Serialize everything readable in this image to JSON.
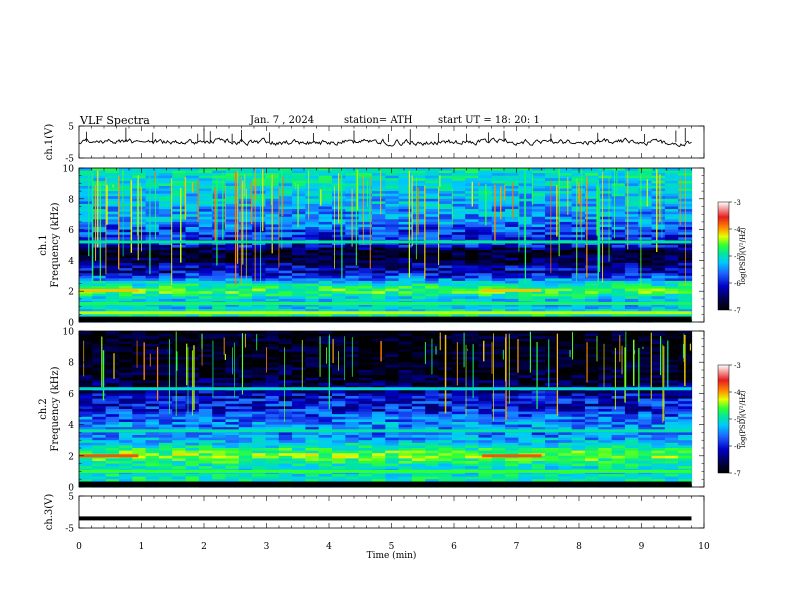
{
  "header": {
    "title": "VLF  Spectra",
    "date": "Jan.  7  , 2024",
    "station": "station= ATH",
    "start_ut": "start  UT  =   18: 20: 1"
  },
  "chart_data": [
    {
      "type": "line",
      "panel": "ch1-waveform",
      "ylabel": "ch.1(V)",
      "yticks": [
        "5",
        "-5"
      ],
      "ylim": [
        -5,
        5
      ],
      "xlim": [
        0,
        10
      ],
      "x_data_end_min": 9.8,
      "baseline_v": 0.0,
      "noise_v": 0.6,
      "spikes": [
        {
          "x": 0.12,
          "y": 3.2
        },
        {
          "x": 0.75,
          "y": 4.5
        },
        {
          "x": 1.18,
          "y": 3.0
        },
        {
          "x": 1.9,
          "y": 2.6
        },
        {
          "x": 2.0,
          "y": 4.2
        },
        {
          "x": 2.1,
          "y": 3.4
        },
        {
          "x": 2.45,
          "y": 2.6
        },
        {
          "x": 2.6,
          "y": 3.8
        },
        {
          "x": 3.05,
          "y": 3.0
        },
        {
          "x": 3.75,
          "y": 2.8
        },
        {
          "x": 4.4,
          "y": 3.6
        },
        {
          "x": 4.95,
          "y": 2.5
        },
        {
          "x": 5.3,
          "y": 4.0
        },
        {
          "x": 5.75,
          "y": 2.8
        },
        {
          "x": 6.2,
          "y": 2.6
        },
        {
          "x": 6.55,
          "y": 3.0
        },
        {
          "x": 6.8,
          "y": 3.5
        },
        {
          "x": 7.55,
          "y": 2.6
        },
        {
          "x": 8.3,
          "y": 2.9
        },
        {
          "x": 9.05,
          "y": 2.5
        },
        {
          "x": 9.55,
          "y": 3.6
        },
        {
          "x": 9.7,
          "y": 4.4
        }
      ]
    },
    {
      "type": "heatmap",
      "panel": "ch1-spectrogram",
      "ylabel": "ch.1\nFrequency  (kHz)",
      "yticks": [
        "0",
        "2",
        "4",
        "6",
        "8",
        "10"
      ],
      "ylim": [
        0,
        10
      ],
      "xlim": [
        0,
        10
      ],
      "x_data_end_min": 9.8,
      "colorbar": {
        "label": "log(PSD)(V²/Hz)",
        "ticks": [
          "-3",
          "-4",
          "-5",
          "-6",
          "-7"
        ],
        "range": [
          -7,
          -3
        ]
      },
      "background_logpsd": [
        {
          "f": 0.0,
          "v": -5.5
        },
        {
          "f": 0.5,
          "v": -4.9
        },
        {
          "f": 1.0,
          "v": -5.4
        },
        {
          "f": 1.5,
          "v": -5.3
        },
        {
          "f": 2.0,
          "v": -4.6
        },
        {
          "f": 2.4,
          "v": -5.0
        },
        {
          "f": 2.8,
          "v": -5.7
        },
        {
          "f": 3.2,
          "v": -6.2
        },
        {
          "f": 3.6,
          "v": -6.3
        },
        {
          "f": 4.0,
          "v": -6.7
        },
        {
          "f": 4.6,
          "v": -6.8
        },
        {
          "f": 5.0,
          "v": -6.1
        },
        {
          "f": 6.0,
          "v": -5.9
        },
        {
          "f": 6.5,
          "v": -5.6
        },
        {
          "f": 7.0,
          "v": -5.6
        },
        {
          "f": 8.0,
          "v": -5.4
        },
        {
          "f": 9.0,
          "v": -5.2
        },
        {
          "f": 10.0,
          "v": -5.1
        }
      ],
      "tones": [
        {
          "f": 2.05,
          "v": -4.0,
          "x0": 0.0,
          "x1": 0.95
        },
        {
          "f": 2.05,
          "v": -4.0,
          "x0": 6.45,
          "x1": 7.4
        },
        {
          "f": 5.2,
          "v": -5.0,
          "x0": 0.0,
          "x1": 9.8
        },
        {
          "f": 0.6,
          "v": -4.3,
          "x0": 0.0,
          "x1": 9.8
        },
        {
          "f": 1.2,
          "v": -4.8,
          "x0": 0.0,
          "x1": 9.8
        }
      ],
      "sferic_fraction": 0.75
    },
    {
      "type": "heatmap",
      "panel": "ch2-spectrogram",
      "ylabel": "ch.2\nFrequency  (kHz)",
      "yticks": [
        "0",
        "2",
        "4",
        "6",
        "8",
        "10"
      ],
      "ylim": [
        0,
        10
      ],
      "xlim": [
        0,
        10
      ],
      "x_data_end_min": 9.8,
      "colorbar": {
        "label": "log(PSD)(V²/Hz)",
        "ticks": [
          "-3",
          "-4",
          "-5",
          "-6",
          "-7"
        ],
        "range": [
          -7,
          -3
        ]
      },
      "background_logpsd": [
        {
          "f": 0.0,
          "v": -5.3
        },
        {
          "f": 0.5,
          "v": -5.0
        },
        {
          "f": 1.0,
          "v": -5.2
        },
        {
          "f": 1.5,
          "v": -5.0
        },
        {
          "f": 2.0,
          "v": -4.4
        },
        {
          "f": 2.5,
          "v": -5.0
        },
        {
          "f": 3.0,
          "v": -5.5
        },
        {
          "f": 3.5,
          "v": -5.7
        },
        {
          "f": 4.0,
          "v": -5.6
        },
        {
          "f": 4.5,
          "v": -5.8
        },
        {
          "f": 5.0,
          "v": -6.1
        },
        {
          "f": 5.5,
          "v": -6.1
        },
        {
          "f": 6.0,
          "v": -6.3
        },
        {
          "f": 6.5,
          "v": -6.6
        },
        {
          "f": 7.0,
          "v": -6.8
        },
        {
          "f": 8.0,
          "v": -6.9
        },
        {
          "f": 9.0,
          "v": -6.9
        },
        {
          "f": 10.0,
          "v": -6.9
        }
      ],
      "tones": [
        {
          "f": 2.0,
          "v": -3.6,
          "x0": 0.0,
          "x1": 0.95
        },
        {
          "f": 2.0,
          "v": -3.6,
          "x0": 6.45,
          "x1": 7.4
        },
        {
          "f": 6.3,
          "v": -5.2,
          "x0": 0.0,
          "x1": 9.8
        },
        {
          "f": 3.6,
          "v": -5.0,
          "x0": 0.0,
          "x1": 9.8
        },
        {
          "f": 1.0,
          "v": -4.6,
          "x0": 0.0,
          "x1": 9.8
        }
      ],
      "sferic_fraction": 0.55
    },
    {
      "type": "line",
      "panel": "ch3-waveform",
      "ylabel": "ch.3(V)",
      "yticks": [
        "5",
        "-5"
      ],
      "ylim": [
        -5,
        5
      ],
      "xlim": [
        0,
        10
      ],
      "x_data_end_min": 9.8,
      "baseline_v": -2.0,
      "noise_v": 0.0
    }
  ],
  "xaxis": {
    "label": "Time  (min)",
    "ticks": [
      "0",
      "1",
      "2",
      "3",
      "4",
      "5",
      "6",
      "7",
      "8",
      "9",
      "10"
    ],
    "range": [
      0,
      10
    ]
  },
  "colors": {
    "colormap": [
      "#000000",
      "#00004b",
      "#0000c8",
      "#1e64ff",
      "#00c8ff",
      "#00e6a0",
      "#32ff32",
      "#e6ff00",
      "#ff8c00",
      "#e61e1e",
      "#ffffff"
    ],
    "line": "#000000"
  }
}
